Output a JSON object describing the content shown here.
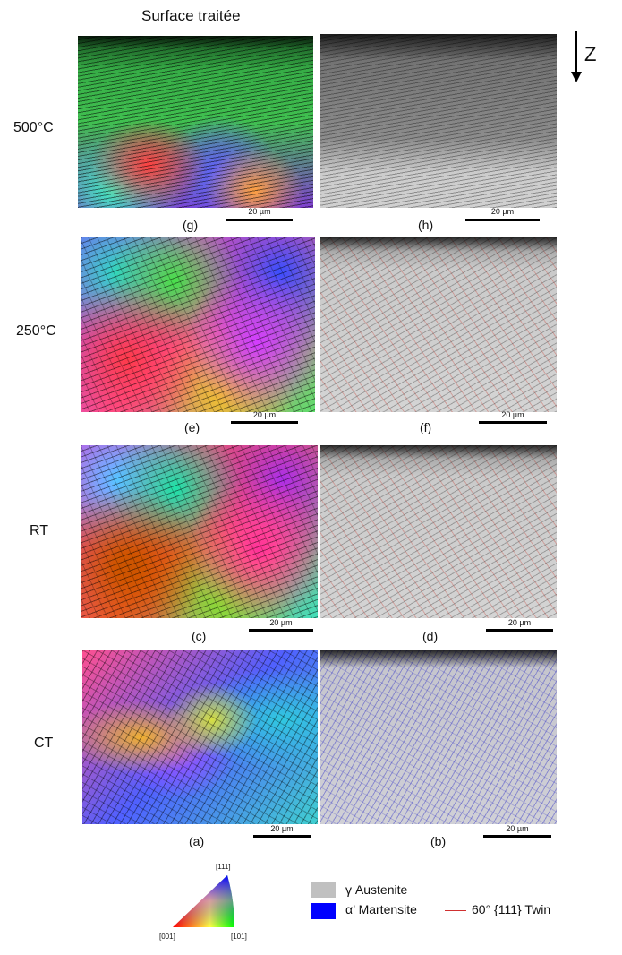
{
  "header": {
    "title": "Surface traitée",
    "axis_label": "Z"
  },
  "rows": [
    {
      "label": "500°C",
      "left_panel": "(g)",
      "right_panel": "(h)"
    },
    {
      "label": "250°C",
      "left_panel": "(e)",
      "right_panel": "(f)"
    },
    {
      "label": "RT",
      "left_panel": "(c)",
      "right_panel": "(d)"
    },
    {
      "label": "CT",
      "left_panel": "(a)",
      "right_panel": "(b)"
    }
  ],
  "scale_bar": "20 µm",
  "ipf_legend": {
    "top": "[111]",
    "left": "[001]",
    "right": "[101]"
  },
  "phase_legend": [
    {
      "label": "γ Austenite",
      "color": "#c0c0c0"
    },
    {
      "label": "α’ Martensite",
      "color": "#0000ff"
    }
  ],
  "twin_legend": {
    "label": "60° {111} Twin",
    "color": "#d03030"
  }
}
